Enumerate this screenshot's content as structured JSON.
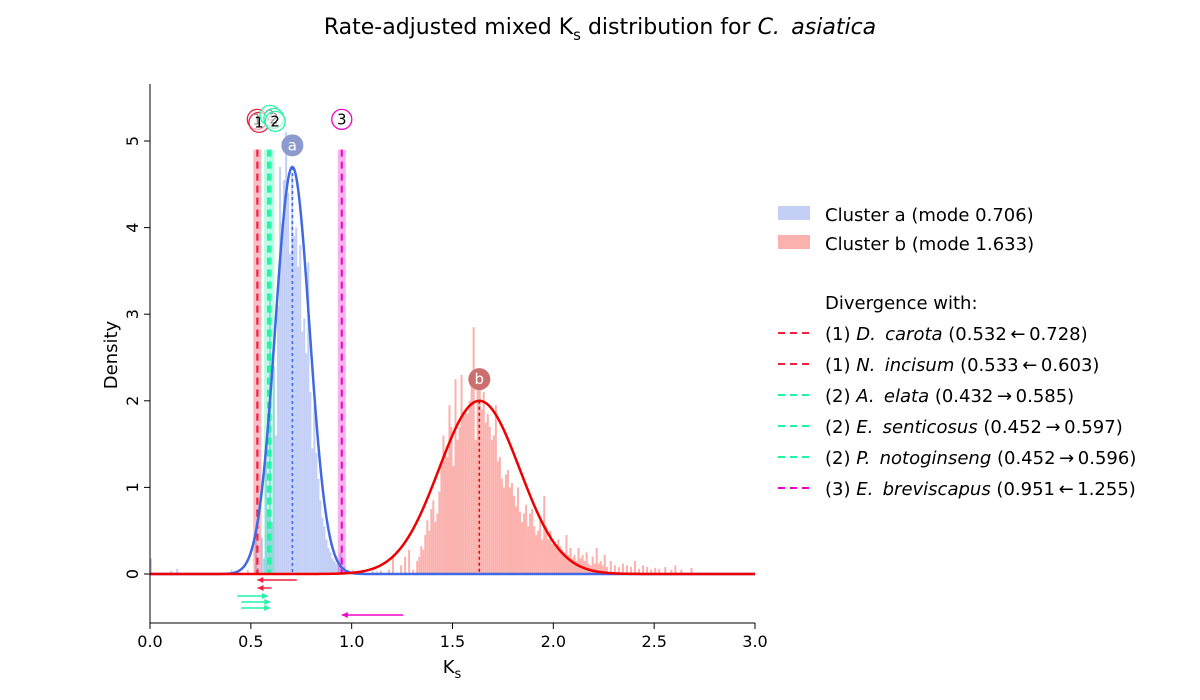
{
  "chart_data": {
    "type": "histogram",
    "title_main": "Rate-adjusted mixed K",
    "title_sub": "s",
    "title_mid": " distribution for ",
    "title_italic": "C.  asiatica",
    "xlabel_main": "K",
    "xlabel_sub": "s",
    "ylabel": "Density",
    "xlim": [
      0,
      3
    ],
    "ylim": [
      -0.6,
      5.65
    ],
    "xticks": [
      "0.0",
      "0.5",
      "1.0",
      "1.5",
      "2.0",
      "2.5",
      "3.0"
    ],
    "yticks": [
      "0",
      "1",
      "2",
      "3",
      "4",
      "5"
    ],
    "grid": false,
    "legend_position": "right",
    "clusters": [
      {
        "id": "a",
        "name": "Cluster a (mode 0.706)",
        "mode": 0.706,
        "peak": 4.7,
        "sd": 0.085,
        "color_fill": "#c3cff4",
        "color_line": "#4169e1",
        "marker_color": "#8c9ad0",
        "bins": [
          [
            0.0,
            0.18
          ],
          [
            0.1,
            0.04
          ],
          [
            0.13,
            0.06
          ],
          [
            0.4,
            0.05
          ],
          [
            0.44,
            0.02
          ],
          [
            0.48,
            0.05
          ],
          [
            0.52,
            0.38
          ],
          [
            0.53,
            0.07
          ],
          [
            0.55,
            0.42
          ],
          [
            0.56,
            0.18
          ],
          [
            0.57,
            1.3
          ],
          [
            0.58,
            0.75
          ],
          [
            0.59,
            3.2
          ],
          [
            0.6,
            0.6
          ],
          [
            0.61,
            2.4
          ],
          [
            0.62,
            1.6
          ],
          [
            0.63,
            3.1
          ],
          [
            0.64,
            4.7
          ],
          [
            0.65,
            4.05
          ],
          [
            0.66,
            4.55
          ],
          [
            0.67,
            5.1
          ],
          [
            0.68,
            4.4
          ],
          [
            0.69,
            3.7
          ],
          [
            0.7,
            4.6
          ],
          [
            0.71,
            3.9
          ],
          [
            0.72,
            4.0
          ],
          [
            0.73,
            3.55
          ],
          [
            0.74,
            3.8
          ],
          [
            0.75,
            2.8
          ],
          [
            0.76,
            2.95
          ],
          [
            0.77,
            2.55
          ],
          [
            0.78,
            3.6
          ],
          [
            0.79,
            2.1
          ],
          [
            0.8,
            1.45
          ],
          [
            0.81,
            1.95
          ],
          [
            0.82,
            1.4
          ],
          [
            0.83,
            1.1
          ],
          [
            0.84,
            0.85
          ],
          [
            0.85,
            0.65
          ],
          [
            0.86,
            0.55
          ],
          [
            0.87,
            0.4
          ],
          [
            0.88,
            0.3
          ],
          [
            0.89,
            0.25
          ],
          [
            0.9,
            0.18
          ],
          [
            0.91,
            0.15
          ],
          [
            0.92,
            0.12
          ],
          [
            0.93,
            0.1
          ],
          [
            0.94,
            0.25
          ],
          [
            0.96,
            0.08
          ],
          [
            0.98,
            0.05
          ],
          [
            1.0,
            0.05
          ],
          [
            1.12,
            0.03
          ]
        ]
      },
      {
        "id": "b",
        "name": "Cluster b (mode 1.633)",
        "mode": 1.633,
        "peak": 2.0,
        "sd": 0.2,
        "color_fill": "#fbb1ad",
        "color_line": "#ee0000",
        "marker_color": "#cd6e6e",
        "bins": [
          [
            1.1,
            0.03
          ],
          [
            1.14,
            0.04
          ],
          [
            1.18,
            0.05
          ],
          [
            1.2,
            0.2
          ],
          [
            1.24,
            0.1
          ],
          [
            1.26,
            0.2
          ],
          [
            1.28,
            0.28
          ],
          [
            1.3,
            0.05
          ],
          [
            1.32,
            0.15
          ],
          [
            1.33,
            0.2
          ],
          [
            1.34,
            0.32
          ],
          [
            1.35,
            0.28
          ],
          [
            1.36,
            0.45
          ],
          [
            1.37,
            0.62
          ],
          [
            1.38,
            0.5
          ],
          [
            1.39,
            0.75
          ],
          [
            1.4,
            0.85
          ],
          [
            1.41,
            0.6
          ],
          [
            1.42,
            0.7
          ],
          [
            1.43,
            0.95
          ],
          [
            1.44,
            1.3
          ],
          [
            1.45,
            1.6
          ],
          [
            1.46,
            1.4
          ],
          [
            1.47,
            1.35
          ],
          [
            1.48,
            1.95
          ],
          [
            1.49,
            1.7
          ],
          [
            1.5,
            1.25
          ],
          [
            1.51,
            2.25
          ],
          [
            1.52,
            1.55
          ],
          [
            1.53,
            1.7
          ],
          [
            1.54,
            2.3
          ],
          [
            1.55,
            1.85
          ],
          [
            1.56,
            1.9
          ],
          [
            1.57,
            1.85
          ],
          [
            1.58,
            2.0
          ],
          [
            1.59,
            2.3
          ],
          [
            1.6,
            2.85
          ],
          [
            1.61,
            1.55
          ],
          [
            1.62,
            2.2
          ],
          [
            1.63,
            2.15
          ],
          [
            1.64,
            1.9
          ],
          [
            1.65,
            2.1
          ],
          [
            1.66,
            1.75
          ],
          [
            1.67,
            1.85
          ],
          [
            1.68,
            1.7
          ],
          [
            1.69,
            1.55
          ],
          [
            1.7,
            1.6
          ],
          [
            1.71,
            1.95
          ],
          [
            1.72,
            1.3
          ],
          [
            1.73,
            1.35
          ],
          [
            1.74,
            1.1
          ],
          [
            1.75,
            1.0
          ],
          [
            1.76,
            1.15
          ],
          [
            1.77,
            1.2
          ],
          [
            1.78,
            1.0
          ],
          [
            1.79,
            1.05
          ],
          [
            1.8,
            0.9
          ],
          [
            1.81,
            0.78
          ],
          [
            1.82,
            1.0
          ],
          [
            1.83,
            0.72
          ],
          [
            1.84,
            0.6
          ],
          [
            1.85,
            0.7
          ],
          [
            1.86,
            0.8
          ],
          [
            1.87,
            0.55
          ],
          [
            1.88,
            0.7
          ],
          [
            1.89,
            0.75
          ],
          [
            1.9,
            0.55
          ],
          [
            1.91,
            0.45
          ],
          [
            1.92,
            0.5
          ],
          [
            1.93,
            0.62
          ],
          [
            1.94,
            0.4
          ],
          [
            1.95,
            0.9
          ],
          [
            1.96,
            0.55
          ],
          [
            1.97,
            0.4
          ],
          [
            1.98,
            0.5
          ],
          [
            1.99,
            0.35
          ],
          [
            2.0,
            0.35
          ],
          [
            2.01,
            0.3
          ],
          [
            2.02,
            0.4
          ],
          [
            2.03,
            0.32
          ],
          [
            2.04,
            0.28
          ],
          [
            2.05,
            0.25
          ],
          [
            2.06,
            0.45
          ],
          [
            2.07,
            0.22
          ],
          [
            2.08,
            0.3
          ],
          [
            2.09,
            0.18
          ],
          [
            2.1,
            0.22
          ],
          [
            2.11,
            0.15
          ],
          [
            2.12,
            0.3
          ],
          [
            2.13,
            0.18
          ],
          [
            2.14,
            0.22
          ],
          [
            2.15,
            0.15
          ],
          [
            2.16,
            0.25
          ],
          [
            2.17,
            0.12
          ],
          [
            2.18,
            0.1
          ],
          [
            2.19,
            0.2
          ],
          [
            2.2,
            0.12
          ],
          [
            2.21,
            0.3
          ],
          [
            2.22,
            0.12
          ],
          [
            2.23,
            0.15
          ],
          [
            2.24,
            0.1
          ],
          [
            2.25,
            0.22
          ],
          [
            2.26,
            0.08
          ],
          [
            2.28,
            0.15
          ],
          [
            2.3,
            0.1
          ],
          [
            2.32,
            0.08
          ],
          [
            2.34,
            0.12
          ],
          [
            2.36,
            0.1
          ],
          [
            2.38,
            0.08
          ],
          [
            2.4,
            0.15
          ],
          [
            2.42,
            0.06
          ],
          [
            2.44,
            0.1
          ],
          [
            2.46,
            0.08
          ],
          [
            2.48,
            0.05
          ],
          [
            2.5,
            0.07
          ],
          [
            2.52,
            0.06
          ],
          [
            2.55,
            0.08
          ],
          [
            2.58,
            0.05
          ],
          [
            2.6,
            0.1
          ],
          [
            2.63,
            0.05
          ],
          [
            2.68,
            0.07
          ]
        ]
      }
    ],
    "divergence_header": "Divergence with:",
    "divergence_lines": [
      {
        "group": "(1)",
        "species": "D.  carota",
        "value": "(0.532 ← 0.728)",
        "ks": 0.532,
        "from": 0.728,
        "color": "#f0203f"
      },
      {
        "group": "(1)",
        "species": "N.  incisum",
        "value": "(0.533 ← 0.603)",
        "ks": 0.533,
        "from": 0.603,
        "color": "#f0203f"
      },
      {
        "group": "(2)",
        "species": "A.  elata",
        "value": "(0.432 → 0.585)",
        "ks": 0.585,
        "from": 0.432,
        "color": "#20f5a5"
      },
      {
        "group": "(2)",
        "species": "E.  senticosus",
        "value": "(0.452 → 0.597)",
        "ks": 0.597,
        "from": 0.452,
        "color": "#20f5a5"
      },
      {
        "group": "(2)",
        "species": "P.  notoginseng",
        "value": "(0.452 → 0.596)",
        "ks": 0.596,
        "from": 0.452,
        "color": "#20f5a5"
      },
      {
        "group": "(3)",
        "species": "E.  breviscapus",
        "value": "(0.951 ← 1.255)",
        "ks": 0.951,
        "from": 1.255,
        "color": "#f000c8"
      }
    ],
    "divergence_markers": [
      {
        "label": "1",
        "ks": 0.532,
        "color": "#f0203f"
      },
      {
        "label": "1",
        "ks": 0.533,
        "color": "#f0203f"
      },
      {
        "label": "2",
        "ks": 0.585,
        "color": "#20f5a5"
      },
      {
        "label": "2",
        "ks": 0.597,
        "color": "#20f5a5"
      },
      {
        "label": "2",
        "ks": 0.596,
        "color": "#20f5a5"
      },
      {
        "label": "3",
        "ks": 0.951,
        "color": "#f000c8"
      }
    ]
  }
}
